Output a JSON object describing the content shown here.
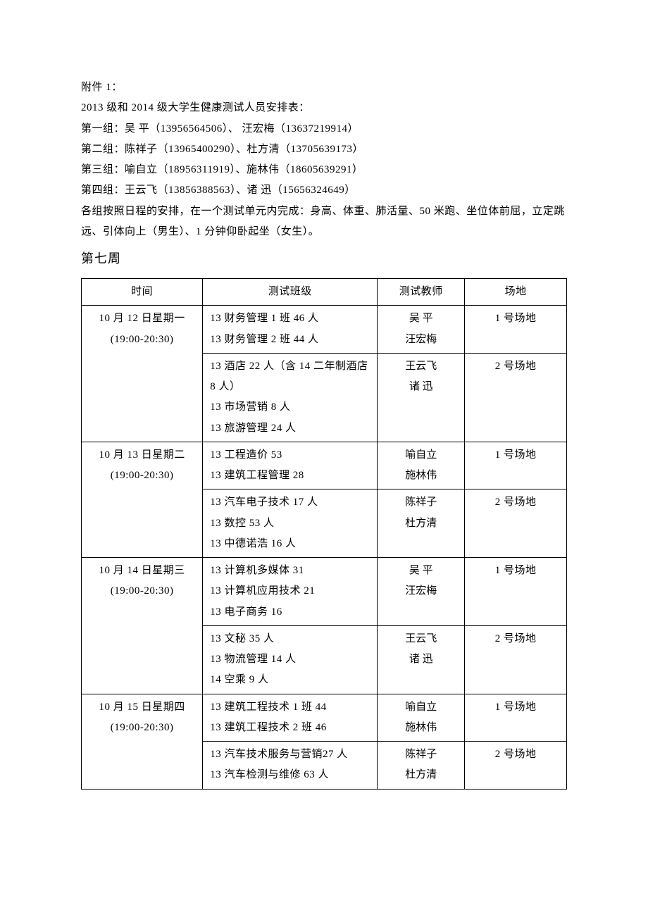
{
  "header": {
    "attachment": "附件 1：",
    "title": "2013 级和 2014 级大学生健康测试人员安排表：",
    "group1": "第一组：吴  平（13956564506）、 汪宏梅（13637219914）",
    "group2": "第二组：陈祥子（13965400290）、杜方清（13705639173）",
    "group3": "第三组：喻自立（18956311919）、施林伟（18605639291）",
    "group4": "第四组：王云飞（13856388563）、诸  迅（15656324649）",
    "instruction": "各组按照日程的安排，在一个测试单元内完成：身高、体重、肺活量、50 米跑、坐位体前屈，立定跳远、引体向上（男生）、1 分钟仰卧起坐（女生）。",
    "week": "第七周"
  },
  "table": {
    "headers": {
      "time": "时间",
      "class": "测试班级",
      "teacher": "测试教师",
      "venue": "场地"
    },
    "rows": [
      {
        "time_l1": "10 月 12 日星期一",
        "time_l2": "(19:00-20:30)",
        "class_lines": [
          "13 财务管理 1 班  46 人",
          "13 财务管理 2 班  44 人"
        ],
        "teacher_lines": [
          "吴    平",
          "汪宏梅"
        ],
        "venue": "1 号场地",
        "time_rowspan": 2
      },
      {
        "class_lines": [
          "13 酒店 22 人（含 14 二年制酒店 8 人）",
          "13 市场营销 8 人",
          "13 旅游管理 24 人"
        ],
        "teacher_lines": [
          "王云飞",
          "诸    迅"
        ],
        "venue": "2 号场地"
      },
      {
        "time_l1": "10 月 13 日星期二",
        "time_l2": "(19:00-20:30)",
        "class_lines": [
          "13 工程造价 53",
          "13 建筑工程管理 28"
        ],
        "teacher_lines": [
          "喻自立",
          "施林伟"
        ],
        "venue": "1 号场地",
        "time_rowspan": 2
      },
      {
        "class_lines": [
          "13 汽车电子技术  17 人",
          "13 数控 53 人",
          "13 中德诺浩  16 人"
        ],
        "teacher_lines": [
          "陈祥子",
          "杜方清"
        ],
        "venue": "2 号场地"
      },
      {
        "time_l1": "10 月 14 日星期三",
        "time_l2": "(19:00-20:30)",
        "class_lines": [
          "13 计算机多媒体  31",
          "13 计算机应用技术 21",
          "13 电子商务 16"
        ],
        "teacher_lines": [
          "吴    平",
          "汪宏梅"
        ],
        "venue": "1 号场地",
        "time_rowspan": 2
      },
      {
        "class_lines": [
          "13 文秘  35 人",
          "13 物流管理  14 人",
          "14 空乘 9 人"
        ],
        "teacher_lines": [
          "王云飞",
          "诸    迅"
        ],
        "venue": "2 号场地"
      },
      {
        "time_l1": "10 月 15 日星期四",
        "time_l2": "(19:00-20:30)",
        "class_lines": [
          "13 建筑工程技术 1 班 44",
          "13 建筑工程技术 2 班 46"
        ],
        "teacher_lines": [
          "喻自立",
          "施林伟"
        ],
        "venue": "1 号场地",
        "time_rowspan": 2
      },
      {
        "class_lines": [
          "13 汽车技术服务与营销27 人",
          "13 汽车检测与维修  63 人"
        ],
        "teacher_lines": [
          "陈祥子",
          "杜方清"
        ],
        "venue": "2 号场地"
      }
    ]
  }
}
